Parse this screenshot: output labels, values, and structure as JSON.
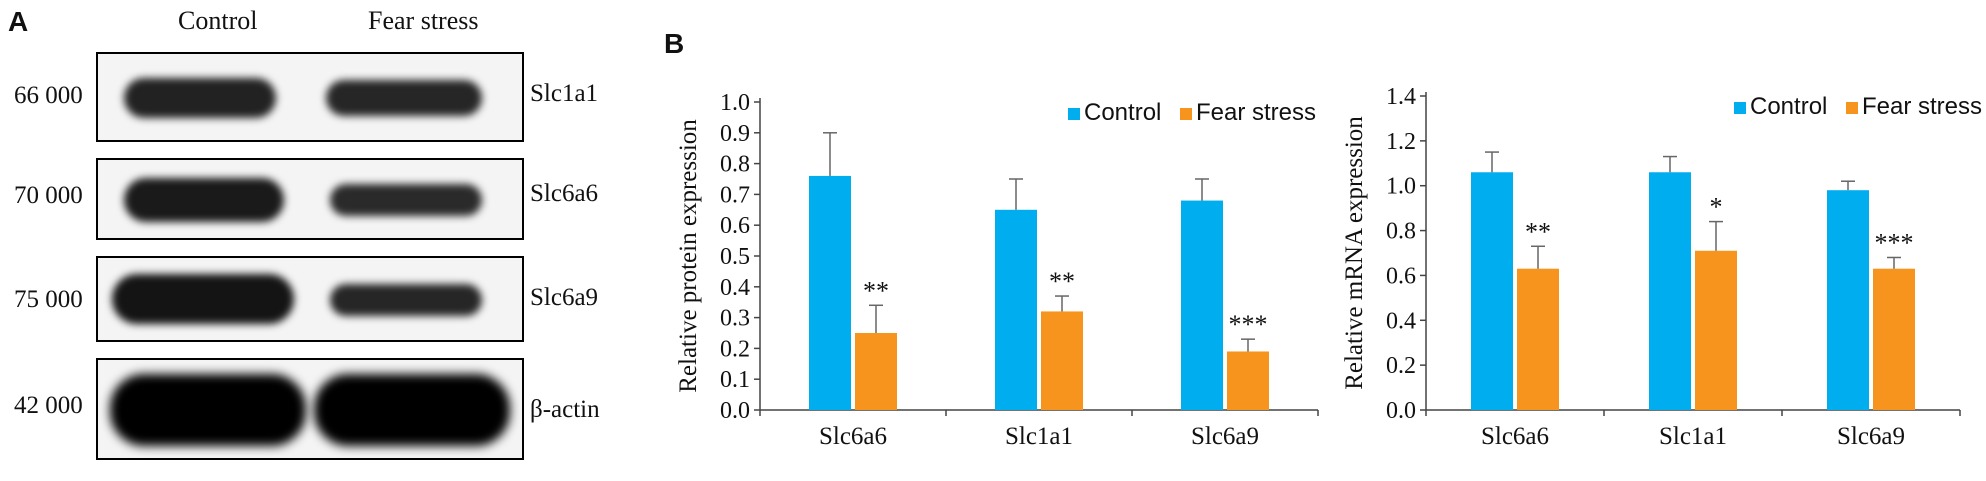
{
  "panel_a": {
    "letter": "A",
    "groups": [
      "Control",
      "Fear stress"
    ],
    "blots": [
      {
        "mw": "66 000",
        "protein": "Slc1a1"
      },
      {
        "mw": "70 000",
        "protein": "Slc6a6"
      },
      {
        "mw": "75 000",
        "protein": "Slc6a9"
      },
      {
        "mw": "42 000",
        "protein": "β-actin"
      }
    ]
  },
  "panel_b": {
    "letter": "B"
  },
  "colors": {
    "control": "#00AEEF",
    "fear": "#F7941D"
  },
  "chart_data": [
    {
      "type": "bar",
      "ylabel": "Relative protein expression",
      "categories": [
        "Slc6a6",
        "Slc1a1",
        "Slc6a9"
      ],
      "ylim": [
        0,
        1.0
      ],
      "yticks": [
        "0.0",
        "0.1",
        "0.2",
        "0.3",
        "0.4",
        "0.5",
        "0.6",
        "0.7",
        "0.8",
        "0.9",
        "1.0"
      ],
      "legend": "top-right",
      "series": [
        {
          "name": "Control",
          "values": [
            0.76,
            0.65,
            0.68
          ],
          "errors": [
            0.14,
            0.1,
            0.07
          ]
        },
        {
          "name": "Fear stress",
          "values": [
            0.25,
            0.32,
            0.19
          ],
          "errors": [
            0.09,
            0.05,
            0.04
          ]
        }
      ],
      "significance": [
        "**",
        "**",
        "***"
      ]
    },
    {
      "type": "bar",
      "ylabel": "Relative mRNA expression",
      "categories": [
        "Slc6a6",
        "Slc1a1",
        "Slc6a9"
      ],
      "ylim": [
        0,
        1.4
      ],
      "yticks": [
        "0.0",
        "0.2",
        "0.4",
        "0.6",
        "0.8",
        "1.0",
        "1.2",
        "1.4"
      ],
      "legend": "top-right",
      "series": [
        {
          "name": "Control",
          "values": [
            1.06,
            1.06,
            0.98
          ],
          "errors": [
            0.09,
            0.07,
            0.04
          ]
        },
        {
          "name": "Fear stress",
          "values": [
            0.63,
            0.71,
            0.63
          ],
          "errors": [
            0.1,
            0.13,
            0.05
          ]
        }
      ],
      "significance": [
        "**",
        "*",
        "***"
      ]
    }
  ]
}
